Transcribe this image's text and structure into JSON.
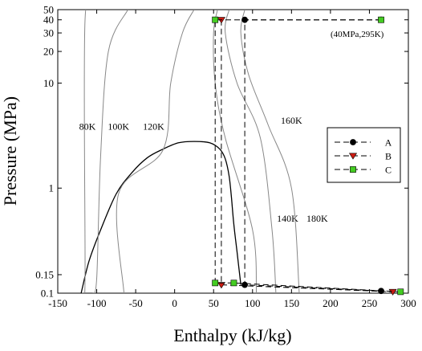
{
  "chart_data": {
    "type": "line",
    "xlabel": "Enthalpy (kJ/kg)",
    "ylabel": "Pressure (MPa)",
    "xlim": [
      -150,
      300
    ],
    "ylim": [
      0.1,
      50
    ],
    "y_scale": "log",
    "x_ticks": [
      -150,
      -100,
      -50,
      0,
      50,
      100,
      150,
      200,
      250,
      300
    ],
    "y_ticks": [
      0.1,
      0.15,
      1,
      10,
      20,
      30,
      40,
      50
    ],
    "y_tick_labels": [
      "0.1",
      "0.15",
      "1",
      "10",
      "20",
      "30",
      "40",
      "50"
    ],
    "grid": "none",
    "legend_position": "right",
    "annotation": "(40MPa,295K)",
    "saturation_dome": [
      [
        -120,
        0.1
      ],
      [
        -110,
        0.2
      ],
      [
        -95,
        0.4
      ],
      [
        -75,
        0.88
      ],
      [
        -55,
        1.4
      ],
      [
        -35,
        1.95
      ],
      [
        -15,
        2.35
      ],
      [
        5,
        2.7
      ],
      [
        25,
        2.78
      ],
      [
        45,
        2.7
      ],
      [
        58,
        2.35
      ],
      [
        65,
        1.9
      ],
      [
        70,
        1.3
      ],
      [
        73,
        0.8
      ],
      [
        76,
        0.45
      ],
      [
        80,
        0.25
      ],
      [
        85,
        0.12
      ]
    ],
    "isotherms": [
      {
        "label": "80K",
        "points": [
          [
            -118,
            0.1
          ],
          [
            -115,
            0.14
          ],
          [
            -115,
            40
          ],
          [
            -100,
            50
          ]
        ]
      },
      {
        "label": "100K",
        "points": [
          [
            -105,
            0.1
          ],
          [
            -100,
            0.14
          ],
          [
            -95,
            2
          ],
          [
            -85,
            20
          ],
          [
            -60,
            50
          ]
        ]
      },
      {
        "label": "120K",
        "points": [
          [
            -65,
            0.1
          ],
          [
            -72,
            0.88
          ],
          [
            -15,
            2.3
          ],
          [
            -5,
            10
          ],
          [
            10,
            30
          ],
          [
            25,
            50
          ]
        ]
      },
      {
        "label": "140K",
        "points": [
          [
            105,
            0.1
          ],
          [
            100,
            0.4
          ],
          [
            65,
            3
          ],
          [
            52,
            10
          ],
          [
            50,
            30
          ],
          [
            55,
            50
          ]
        ]
      },
      {
        "label": "160K",
        "points": [
          [
            130,
            0.1
          ],
          [
            125,
            0.4
          ],
          [
            110,
            3
          ],
          [
            80,
            10
          ],
          [
            65,
            30
          ],
          [
            70,
            50
          ]
        ]
      },
      {
        "label": "180K",
        "points": [
          [
            160,
            0.1
          ],
          [
            150,
            1
          ],
          [
            120,
            4
          ],
          [
            95,
            12
          ],
          [
            85,
            30
          ],
          [
            90,
            50
          ]
        ]
      }
    ],
    "series": [
      {
        "name": "A",
        "marker": "circle",
        "color": "#000000",
        "points": [
          [
            265,
            40
          ],
          [
            90,
            40
          ],
          [
            90,
            0.12
          ],
          [
            265,
            0.105
          ]
        ]
      },
      {
        "name": "B",
        "marker": "triangle-down",
        "color": "#cc1b12",
        "points": [
          [
            60,
            40
          ],
          [
            60,
            0.12
          ],
          [
            280,
            0.103
          ]
        ]
      },
      {
        "name": "C",
        "marker": "square",
        "color": "#44cc22",
        "points": [
          [
            265,
            40
          ],
          [
            52,
            40
          ],
          [
            52,
            0.125
          ],
          [
            76,
            0.125
          ],
          [
            290,
            0.103
          ]
        ]
      }
    ]
  }
}
